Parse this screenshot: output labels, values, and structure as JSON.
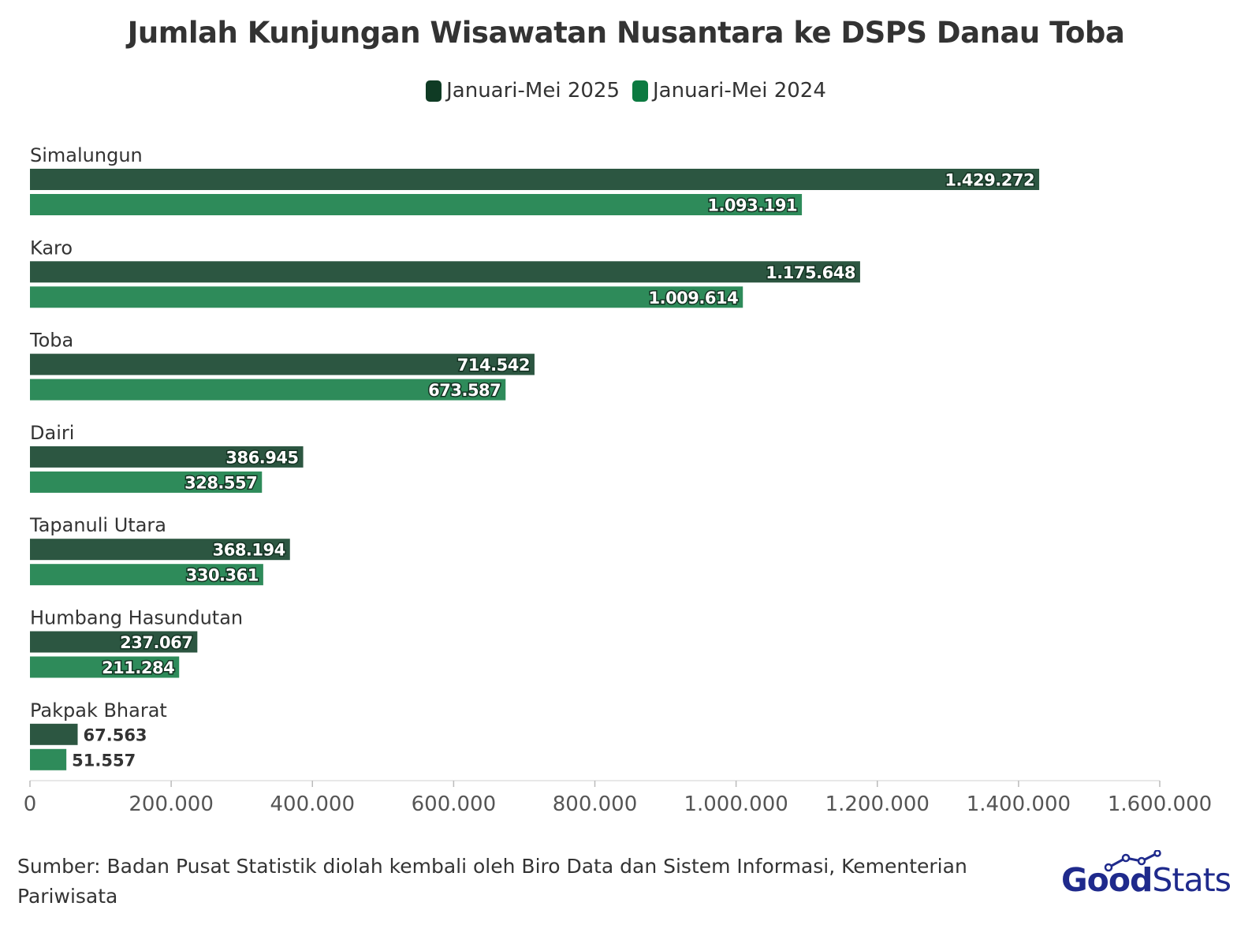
{
  "chart_data": {
    "type": "bar",
    "orientation": "horizontal",
    "title": "Jumlah Kunjungan Wisawatan Nusantara ke DSPS Danau Toba",
    "categories": [
      "Simalungun",
      "Karo",
      "Toba",
      "Dairi",
      "Tapanuli Utara",
      "Humbang Hasundutan",
      "Pakpak Bharat"
    ],
    "series": [
      {
        "name": "Januari-Mei 2025",
        "color": "#2c5641",
        "values": [
          1429272,
          1175648,
          714542,
          386945,
          368194,
          237067,
          67563
        ],
        "labels": [
          "1.429.272",
          "1.175.648",
          "714.542",
          "386.945",
          "368.194",
          "237.067",
          "67.563"
        ]
      },
      {
        "name": "Januari-Mei 2024",
        "color": "#2e8b5a",
        "values": [
          1093191,
          1009614,
          673587,
          328557,
          330361,
          211284,
          51557
        ],
        "labels": [
          "1.093.191",
          "1.009.614",
          "673.587",
          "328.557",
          "330.361",
          "211.284",
          "51.557"
        ]
      }
    ],
    "xlim": [
      0,
      1600000
    ],
    "xticks": [
      0,
      200000,
      400000,
      600000,
      800000,
      1000000,
      1200000,
      1400000,
      1600000
    ],
    "xtick_labels": [
      "0",
      "200.000",
      "400.000",
      "600.000",
      "800.000",
      "1.000.000",
      "1.200.000",
      "1.400.000",
      "1.600.000"
    ],
    "legend_position": "top-center",
    "legend_swatch_colors": [
      "#0f3b24",
      "#0c7a41"
    ],
    "grid": false
  },
  "source": "Sumber: Badan Pusat Statistik diolah kembali oleh Biro Data dan Sistem Informasi, Kementerian Pariwisata",
  "logo": {
    "good": "Good",
    "stats": "Stats",
    "color": "#1f2a8c"
  }
}
